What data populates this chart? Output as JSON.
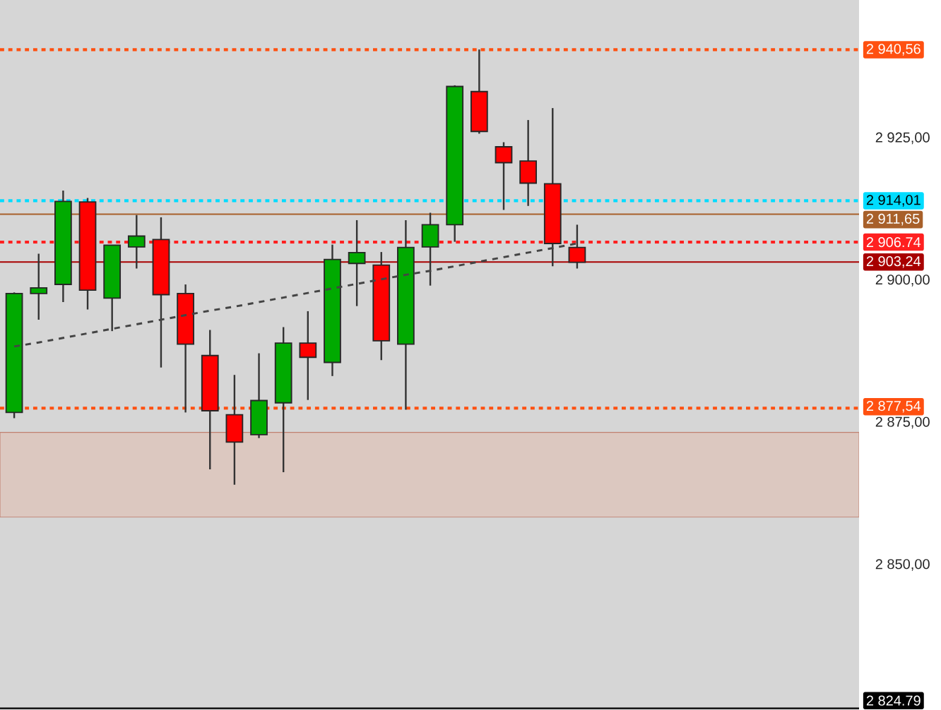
{
  "chart_data": {
    "type": "candlestick",
    "categories": [
      null,
      null,
      null,
      null,
      null,
      null,
      null,
      null,
      null,
      null,
      null,
      null,
      null,
      null,
      null,
      null,
      null,
      null,
      null,
      null,
      null,
      null,
      null,
      null
    ],
    "ohlc": [
      [
        2876.8,
        2897.9,
        2875.8,
        2897.7
      ],
      [
        2897.7,
        2904.7,
        2893.1,
        2898.7
      ],
      [
        2899.3,
        2915.8,
        2896.2,
        2913.9
      ],
      [
        2913.8,
        2914.5,
        2894.9,
        2898.3
      ],
      [
        2896.9,
        2906.2,
        2891.1,
        2906.2
      ],
      [
        2905.9,
        2911.5,
        2902.1,
        2907.8
      ],
      [
        2907.2,
        2911.1,
        2884.7,
        2897.5
      ],
      [
        2897.7,
        2899.3,
        2876.8,
        2888.8
      ],
      [
        2886.8,
        2891.3,
        2866.8,
        2877.1
      ],
      [
        2876.4,
        2883.4,
        2864.1,
        2871.6
      ],
      [
        2872.9,
        2887.2,
        2872.3,
        2878.9
      ],
      [
        2878.5,
        2891.8,
        2866.3,
        2889.0
      ],
      [
        2889.0,
        2894.6,
        2879.0,
        2886.5
      ],
      [
        2885.6,
        2906.3,
        2883.2,
        2903.7
      ],
      [
        2903.0,
        2910.6,
        2895.5,
        2904.9
      ],
      [
        2902.7,
        2905.0,
        2886.0,
        2889.4
      ],
      [
        2888.8,
        2910.6,
        2877.3,
        2905.8
      ],
      [
        2905.9,
        2911.9,
        2899.1,
        2909.8
      ],
      [
        2909.8,
        2934.3,
        2906.8,
        2934.1
      ],
      [
        2933.2,
        2940.6,
        2925.8,
        2926.2
      ],
      [
        2923.5,
        2924.3,
        2912.4,
        2920.7
      ],
      [
        2921.0,
        2928.2,
        2913.1,
        2917.1
      ],
      [
        2917.0,
        2930.3,
        2902.5,
        2906.5
      ],
      [
        2905.8,
        2909.8,
        2902.1,
        2903.2
      ]
    ],
    "colors": [
      "#00aa00",
      "#00aa00",
      "#00aa00",
      "#ff0000",
      "#00aa00",
      "#00aa00",
      "#ff0000",
      "#ff0000",
      "#ff0000",
      "#ff0000",
      "#00aa00",
      "#00aa00",
      "#ff0000",
      "#00aa00",
      "#00aa00",
      "#ff0000",
      "#00aa00",
      "#00aa00",
      "#00aa00",
      "#ff0000",
      "#ff0000",
      "#ff0000",
      "#ff0000",
      "#ff0000"
    ],
    "series": [
      {
        "type": "line",
        "values": [
          2888.4,
          2889.1,
          2889.9,
          2890.7,
          2891.5,
          2892.3,
          2893.1,
          2893.9,
          2894.7,
          2895.4,
          2896.2,
          2897.0,
          2897.8,
          2898.6,
          2899.4,
          2900.2,
          2901.0,
          2901.7,
          2902.5,
          2903.3,
          2904.1,
          2904.9,
          2905.7,
          2906.5
        ],
        "color": "#444444",
        "line_style": "dashed"
      }
    ],
    "ylim": [
      2824.5,
      2949.3
    ],
    "yticks": [
      {
        "value": 2850,
        "label": "2 850,00"
      },
      {
        "value": 2875,
        "label": "2 875,00"
      },
      {
        "value": 2900,
        "label": "2 900,00"
      },
      {
        "value": 2925,
        "label": "2 925,00"
      }
    ],
    "tick_labels": "y",
    "ref_lines": [
      {
        "axis": "y",
        "value": 2940.56,
        "label": "2 940,56",
        "color": "#ff5010",
        "line_style": "dotted"
      },
      {
        "axis": "y",
        "value": 2914.01,
        "label": "2 914,01",
        "color": "#00dcff",
        "line_style": "dotted"
      },
      {
        "axis": "y",
        "value": 2911.65,
        "label": "2 911,65",
        "color": "#a8602a",
        "line_style": "solid"
      },
      {
        "axis": "y",
        "value": 2906.74,
        "label": "2 906.74",
        "color": "#ff2020",
        "line_style": "dotted"
      },
      {
        "axis": "y",
        "value": 2903.24,
        "label": "2 903,24",
        "color": "#a80000",
        "line_style": "solid"
      },
      {
        "axis": "y",
        "value": 2877.54,
        "label": "2 877,54",
        "color": "#ff5010",
        "line_style": "dotted"
      },
      {
        "axis": "y",
        "value": 2824.79,
        "label": "2 824.79",
        "color": "#000000",
        "line_style": "solid"
      }
    ],
    "bands": [
      {
        "axis": "y",
        "from": 2858.4,
        "to": 2873.3,
        "color": "#dcc8c0"
      }
    ]
  }
}
